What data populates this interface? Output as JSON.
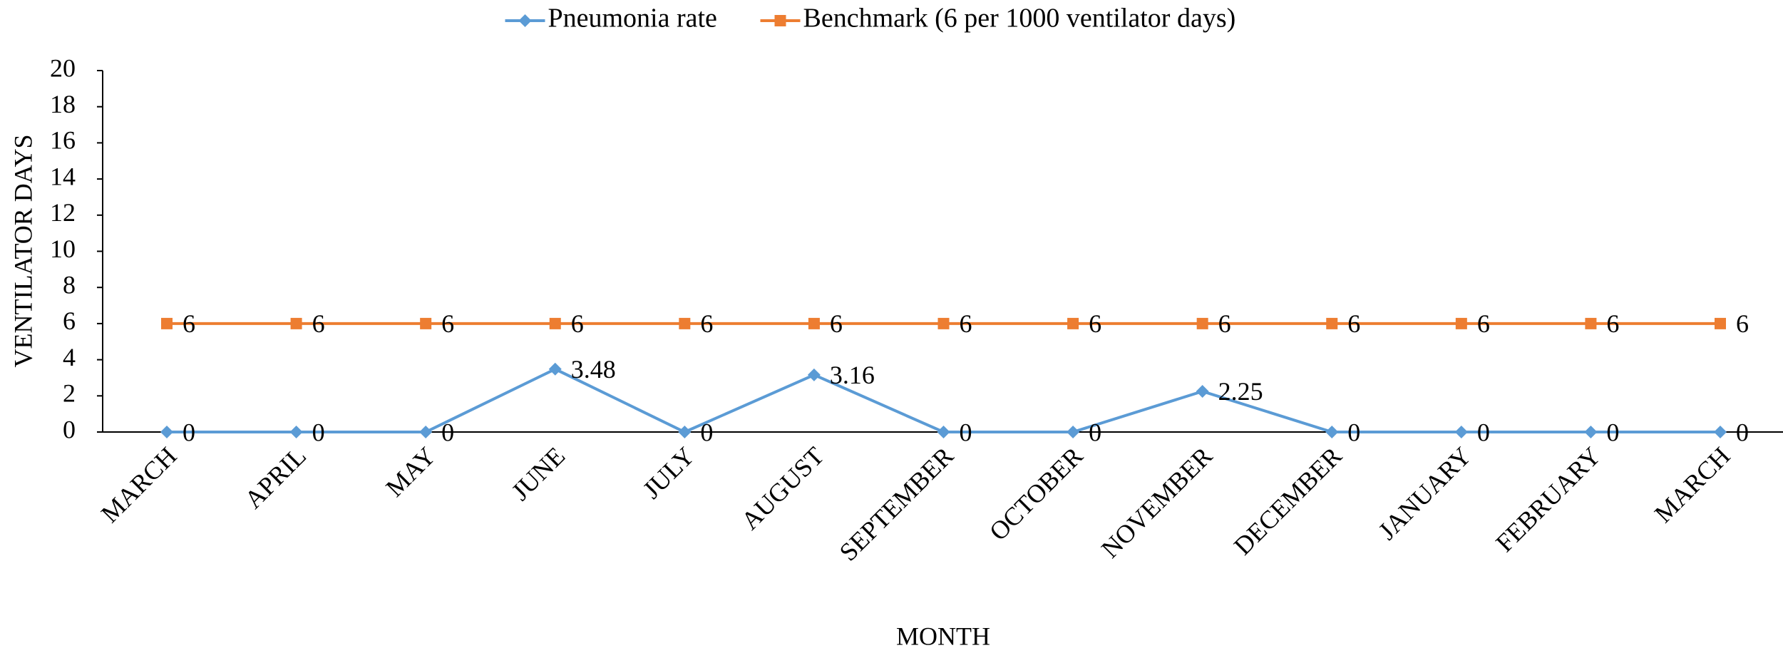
{
  "chart_data": {
    "type": "line",
    "x_label": "MONTH",
    "y_label": "VENTILATOR DAYS",
    "categories": [
      "MARCH",
      "APRIL",
      "MAY",
      "JUNE",
      "JULY",
      "AUGUST",
      "SEPTEMBER",
      "OCTOBER",
      "NOVEMBER",
      "DECEMBER",
      "JANUARY",
      "FEBRUARY",
      "MARCH"
    ],
    "series": [
      {
        "name": "Pneumonia rate",
        "color": "#5b9bd5",
        "marker": "diamond",
        "values": [
          0,
          0,
          0,
          3.48,
          0,
          3.16,
          0,
          0,
          2.25,
          0,
          0,
          0,
          0
        ]
      },
      {
        "name": "Benchmark (6 per 1000 ventilator days)",
        "color": "#ed7d31",
        "marker": "square",
        "values": [
          6,
          6,
          6,
          6,
          6,
          6,
          6,
          6,
          6,
          6,
          6,
          6,
          6
        ]
      }
    ],
    "ylim": [
      0,
      20
    ],
    "yticks": [
      0,
      2,
      4,
      6,
      8,
      10,
      12,
      14,
      16,
      18,
      20
    ],
    "grid": false,
    "legend": "top",
    "data_labels": true
  }
}
